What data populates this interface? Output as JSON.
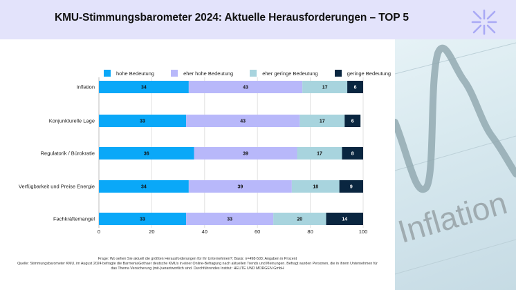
{
  "header": {
    "title": "KMU-Stimmungsbarometer 2024: Aktuelle Herausforderungen – TOP 5",
    "logo_icon": "sparkle-burst-icon",
    "background_color": "#e3e3fb",
    "logo_color": "#a9a9f5"
  },
  "photo": {
    "icon": "inflation-chart-photo",
    "caption": "Inflation"
  },
  "chart_data": {
    "type": "bar",
    "orientation": "horizontal",
    "stacked": true,
    "title": "KMU-Stimmungsbarometer 2024: Aktuelle Herausforderungen – TOP 5",
    "xlabel": "",
    "ylabel": "",
    "xlim": [
      0,
      100
    ],
    "x_ticks": [
      0,
      20,
      40,
      60,
      80,
      100
    ],
    "grid": true,
    "legend_position": "top",
    "categories": [
      "Inflation",
      "Konjunkturelle Lage",
      "Regulatorik / Bürokratie",
      "Verfügbarkeit und Preise Energie",
      "Fachkräftemangel"
    ],
    "series": [
      {
        "name": "hohe Bedeutung",
        "color": "#0aa8f8",
        "label_color": "#111111",
        "values": [
          34,
          33,
          36,
          34,
          33
        ]
      },
      {
        "name": "eher hohe Bedeutung",
        "color": "#b8b8fa",
        "label_color": "#111111",
        "values": [
          43,
          43,
          39,
          39,
          33
        ]
      },
      {
        "name": "eher geringe Bedeutung",
        "color": "#a8d4de",
        "label_color": "#111111",
        "values": [
          17,
          17,
          17,
          18,
          20
        ]
      },
      {
        "name": "geringe Bedeutung",
        "color": "#0a2640",
        "label_color": "#ffffff",
        "values": [
          6,
          6,
          8,
          9,
          14
        ]
      }
    ]
  },
  "footnote": {
    "line1": "Frage: Wo sehen Sie aktuell die größten Herausforderungen für Ihr Unternehmen?; Basis: n=498-503; Angaben in Prozent",
    "line2": "Quelle: Stimmungsbarometer KMU, im August 2024 befragte die BarmeniaGothaer deutsche KMUs in einer Online-Befragung nach aktuellen Trends und Meinungen. Befragt wurden Personen, die in ihrem Unternehmen für",
    "line3": "das Thema Versicherung (mit-)verantwortlich sind. Durchführendes Institut: HEUTE UND MORGEN GmbH"
  }
}
